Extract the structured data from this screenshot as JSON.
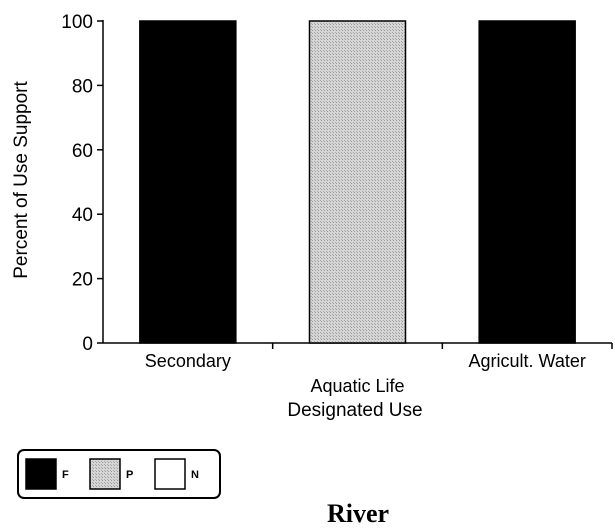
{
  "chart_data": {
    "type": "bar",
    "categories": [
      "Secondary",
      "Aquatic Life",
      "Agricult. Water"
    ],
    "series": [
      {
        "name": "F",
        "values": [
          100,
          0,
          100
        ]
      },
      {
        "name": "P",
        "values": [
          0,
          100,
          0
        ]
      },
      {
        "name": "N",
        "values": [
          0,
          0,
          0
        ]
      }
    ],
    "xlabel": "Designated Use",
    "ylabel": "Percent of Use Support",
    "ylim": [
      0,
      100
    ],
    "yticks": [
      0,
      20,
      40,
      60,
      80,
      100
    ],
    "grid": false,
    "legend_position": "bottom-left",
    "caption": "River",
    "colors": {
      "F": "#000000",
      "P": "#bdbdbd",
      "N": "#ffffff"
    }
  }
}
